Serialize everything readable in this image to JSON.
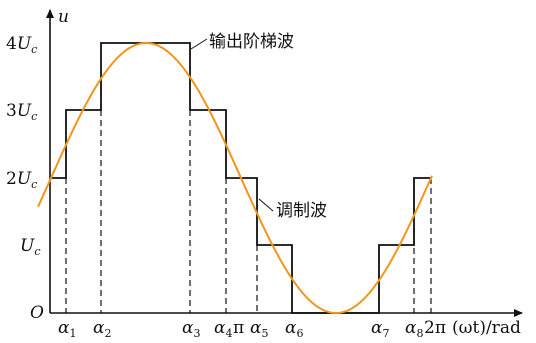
{
  "chart_data": {
    "type": "line",
    "y_axis_symbol": "u",
    "origin_label": "O",
    "x_axis_label": "(ωt)/rad",
    "y_levels": [
      {
        "base": "U",
        "sub": "c",
        "coef": ""
      },
      {
        "base": "U",
        "sub": "c",
        "coef": "2"
      },
      {
        "base": "U",
        "sub": "c",
        "coef": "3"
      },
      {
        "base": "U",
        "sub": "c",
        "coef": "4"
      }
    ],
    "x_ticks": [
      {
        "base": "α",
        "sub": "1"
      },
      {
        "base": "α",
        "sub": "2"
      },
      {
        "base": "α",
        "sub": "3"
      },
      {
        "base": "α",
        "sub": "4"
      },
      {
        "base": "π",
        "sub": ""
      },
      {
        "base": "α",
        "sub": "5"
      },
      {
        "base": "α",
        "sub": "6"
      },
      {
        "base": "α",
        "sub": "7"
      },
      {
        "base": "α",
        "sub": "8"
      },
      {
        "base": "2π",
        "sub": ""
      }
    ],
    "series": [
      {
        "name": "输出阶梯波",
        "color": "#111111"
      },
      {
        "name": "调制波",
        "color": "#f0961e"
      }
    ]
  }
}
